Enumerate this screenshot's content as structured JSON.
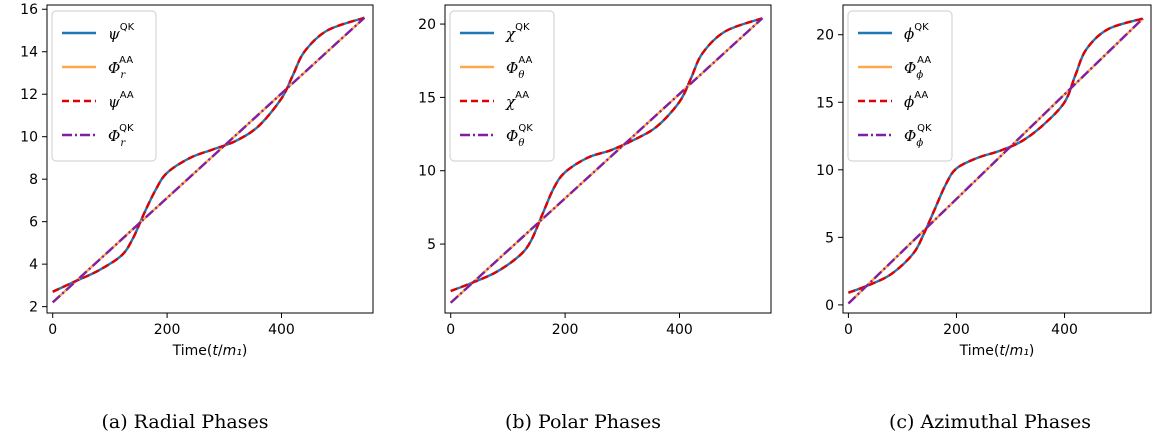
{
  "chart_data": [
    {
      "type": "line",
      "caption": "(a) Radial Phases",
      "xlabel": "Time(t/m₁)",
      "xlim": [
        -10,
        560
      ],
      "ylim": [
        1.7,
        16.2
      ],
      "xticks": [
        0,
        200,
        400
      ],
      "yticks": [
        2,
        4,
        6,
        8,
        10,
        12,
        14,
        16
      ],
      "legend_position": "upper left",
      "grid": false,
      "series": [
        {
          "name": "ψ^QK",
          "color": "#1f77b4",
          "style": "solid",
          "x": [
            0,
            40,
            80,
            120,
            140,
            160,
            180,
            200,
            240,
            280,
            320,
            360,
            400,
            420,
            440,
            480,
            545
          ],
          "y": [
            2.7,
            3.2,
            3.7,
            4.4,
            5.2,
            6.4,
            7.5,
            8.3,
            9.0,
            9.4,
            9.8,
            10.5,
            11.8,
            12.9,
            14.0,
            15.0,
            15.6
          ]
        },
        {
          "name": "Φ_r^AA",
          "color": "#ffa84a",
          "style": "solid",
          "x": [
            0,
            545
          ],
          "y": [
            2.2,
            15.6
          ]
        },
        {
          "name": "ψ^AA",
          "color": "#e00000",
          "style": "dashed",
          "x": [
            0,
            40,
            80,
            120,
            140,
            160,
            180,
            200,
            240,
            280,
            320,
            360,
            400,
            420,
            440,
            480,
            545
          ],
          "y": [
            2.7,
            3.2,
            3.7,
            4.4,
            5.2,
            6.4,
            7.5,
            8.3,
            9.0,
            9.4,
            9.8,
            10.5,
            11.8,
            12.9,
            14.0,
            15.0,
            15.6
          ]
        },
        {
          "name": "Φ_r^QK",
          "color": "#7f1fa3",
          "style": "dashdot",
          "x": [
            0,
            545
          ],
          "y": [
            2.2,
            15.6
          ]
        }
      ]
    },
    {
      "type": "line",
      "caption": "(b) Polar Phases",
      "xlabel": "",
      "xlim": [
        -10,
        560
      ],
      "ylim": [
        0.3,
        21.3
      ],
      "xticks": [
        0,
        200,
        400
      ],
      "yticks": [
        5,
        10,
        15,
        20
      ],
      "legend_position": "upper left",
      "grid": false,
      "series": [
        {
          "name": "χ^QK",
          "color": "#1f77b4",
          "style": "solid",
          "x": [
            0,
            40,
            80,
            120,
            140,
            160,
            180,
            200,
            240,
            280,
            320,
            360,
            400,
            420,
            440,
            480,
            545
          ],
          "y": [
            1.8,
            2.4,
            3.1,
            4.2,
            5.2,
            7.0,
            8.8,
            9.9,
            10.9,
            11.4,
            12.1,
            13.0,
            14.7,
            16.3,
            18.0,
            19.5,
            20.4
          ]
        },
        {
          "name": "Φ_θ^AA",
          "color": "#ffa84a",
          "style": "solid",
          "x": [
            0,
            545
          ],
          "y": [
            1.0,
            20.4
          ]
        },
        {
          "name": "χ^AA",
          "color": "#e00000",
          "style": "dashed",
          "x": [
            0,
            40,
            80,
            120,
            140,
            160,
            180,
            200,
            240,
            280,
            320,
            360,
            400,
            420,
            440,
            480,
            545
          ],
          "y": [
            1.8,
            2.4,
            3.1,
            4.2,
            5.2,
            7.0,
            8.8,
            9.9,
            10.9,
            11.4,
            12.1,
            13.0,
            14.7,
            16.3,
            18.0,
            19.5,
            20.4
          ]
        },
        {
          "name": "Φ_θ^QK",
          "color": "#7f1fa3",
          "style": "dashdot",
          "x": [
            0,
            545
          ],
          "y": [
            1.0,
            20.4
          ]
        }
      ]
    },
    {
      "type": "line",
      "caption": "(c) Azimuthal Phases",
      "xlabel": "Time(t/m₁)",
      "xlim": [
        -10,
        560
      ],
      "ylim": [
        -0.6,
        22.2
      ],
      "xticks": [
        0,
        200,
        400
      ],
      "yticks": [
        0,
        5,
        10,
        15,
        20
      ],
      "legend_position": "upper left",
      "grid": false,
      "series": [
        {
          "name": "ϕ^QK",
          "color": "#1f77b4",
          "style": "solid",
          "x": [
            0,
            40,
            80,
            120,
            140,
            160,
            180,
            200,
            240,
            280,
            320,
            360,
            400,
            420,
            440,
            480,
            545
          ],
          "y": [
            0.9,
            1.5,
            2.3,
            3.8,
            5.3,
            7.1,
            8.9,
            10.1,
            10.9,
            11.4,
            12.1,
            13.3,
            15.0,
            17.0,
            18.9,
            20.4,
            21.2
          ]
        },
        {
          "name": "Φ_ϕ^AA",
          "color": "#ffa84a",
          "style": "solid",
          "x": [
            0,
            545
          ],
          "y": [
            0.1,
            21.2
          ]
        },
        {
          "name": "ϕ^AA",
          "color": "#e00000",
          "style": "dashed",
          "x": [
            0,
            40,
            80,
            120,
            140,
            160,
            180,
            200,
            240,
            280,
            320,
            360,
            400,
            420,
            440,
            480,
            545
          ],
          "y": [
            0.9,
            1.5,
            2.3,
            3.8,
            5.3,
            7.1,
            8.9,
            10.1,
            10.9,
            11.4,
            12.1,
            13.3,
            15.0,
            17.0,
            18.9,
            20.4,
            21.2
          ]
        },
        {
          "name": "Φ_ϕ^QK",
          "color": "#7f1fa3",
          "style": "dashdot",
          "x": [
            0,
            545
          ],
          "y": [
            0.1,
            21.2
          ]
        }
      ]
    }
  ]
}
